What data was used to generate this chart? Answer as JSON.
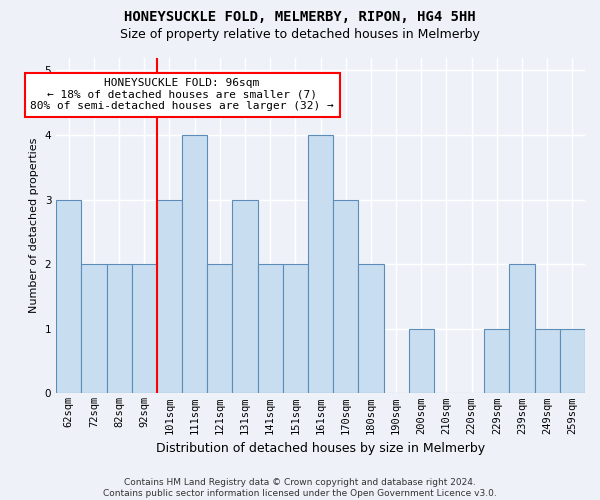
{
  "title": "HONEYSUCKLE FOLD, MELMERBY, RIPON, HG4 5HH",
  "subtitle": "Size of property relative to detached houses in Melmerby",
  "xlabel": "Distribution of detached houses by size in Melmerby",
  "ylabel": "Number of detached properties",
  "categories": [
    "62sqm",
    "72sqm",
    "82sqm",
    "92sqm",
    "101sqm",
    "111sqm",
    "121sqm",
    "131sqm",
    "141sqm",
    "151sqm",
    "161sqm",
    "170sqm",
    "180sqm",
    "190sqm",
    "200sqm",
    "210sqm",
    "220sqm",
    "229sqm",
    "239sqm",
    "249sqm",
    "259sqm"
  ],
  "values": [
    3,
    2,
    2,
    2,
    3,
    4,
    2,
    3,
    2,
    2,
    4,
    3,
    2,
    0,
    1,
    0,
    0,
    1,
    2,
    1,
    1
  ],
  "bar_color": "#c9ddf0",
  "bar_edge_color": "#5b8db8",
  "red_line_index": 3.5,
  "annotation_text": "HONEYSUCKLE FOLD: 96sqm\n← 18% of detached houses are smaller (7)\n80% of semi-detached houses are larger (32) →",
  "ylim": [
    0,
    5.2
  ],
  "yticks": [
    0,
    1,
    2,
    3,
    4,
    5
  ],
  "footnote": "Contains HM Land Registry data © Crown copyright and database right 2024.\nContains public sector information licensed under the Open Government Licence v3.0.",
  "background_color": "#eef2f8",
  "plot_bg_color": "#eef2f8",
  "grid_color": "#ffffff",
  "title_fontsize": 10,
  "subtitle_fontsize": 9,
  "xlabel_fontsize": 9,
  "ylabel_fontsize": 8,
  "tick_fontsize": 7.5,
  "annotation_fontsize": 8,
  "footnote_fontsize": 6.5
}
